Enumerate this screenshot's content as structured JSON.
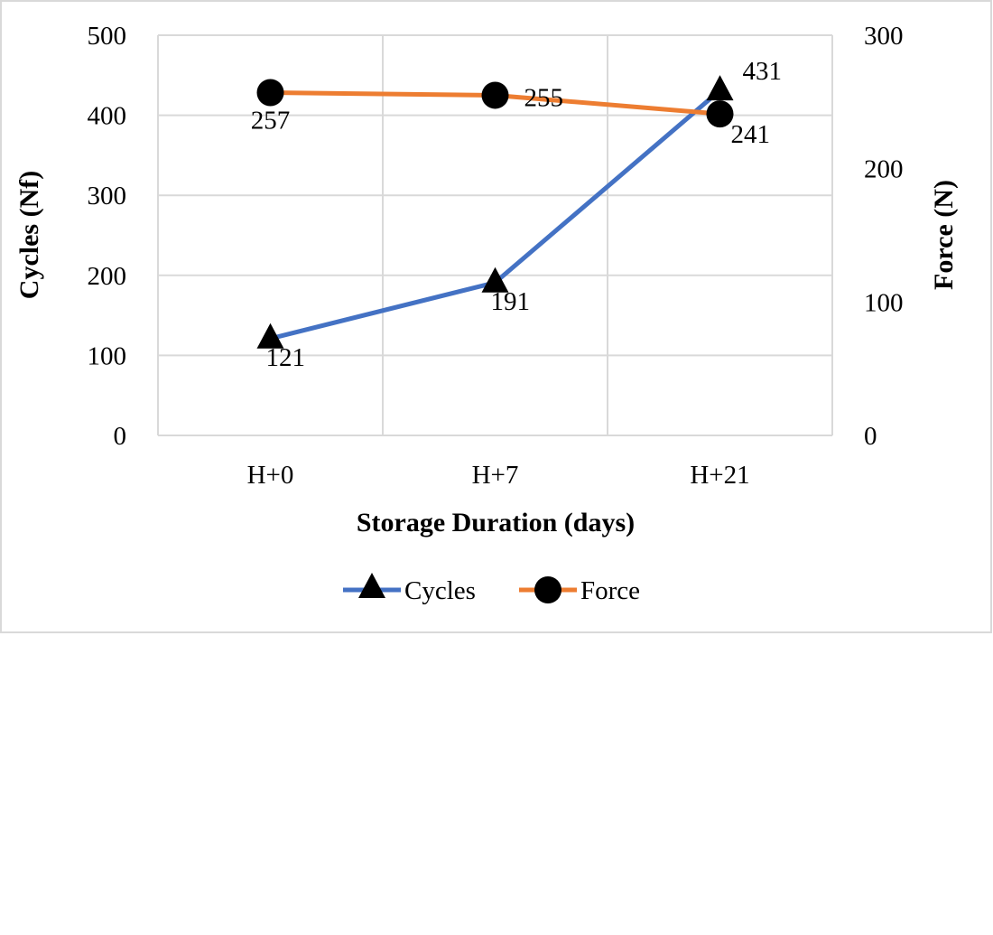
{
  "chart_data": {
    "type": "line",
    "categories": [
      "H+0",
      "H+7",
      "H+21"
    ],
    "xlabel": "Storage Duration (days)",
    "ylabel": "Cycles (Nf)",
    "y2label": "Force (N)",
    "ylim": [
      0,
      500
    ],
    "y2lim": [
      0,
      300
    ],
    "yticks": [
      "0",
      "100",
      "200",
      "300",
      "400",
      "500"
    ],
    "y2ticks": [
      "0",
      "100",
      "200",
      "300"
    ],
    "grid": true,
    "legend": "bottom",
    "series": [
      {
        "name": "Cycles",
        "axis": "left",
        "values": [
          121,
          191,
          431
        ],
        "labels": [
          "121",
          "191",
          "431"
        ],
        "color": "#4472c4",
        "marker": "triangle"
      },
      {
        "name": "Force",
        "axis": "right",
        "values": [
          257,
          255,
          241
        ],
        "labels": [
          "257",
          "255",
          "241"
        ],
        "color": "#ed7d31",
        "marker": "circle"
      }
    ]
  }
}
